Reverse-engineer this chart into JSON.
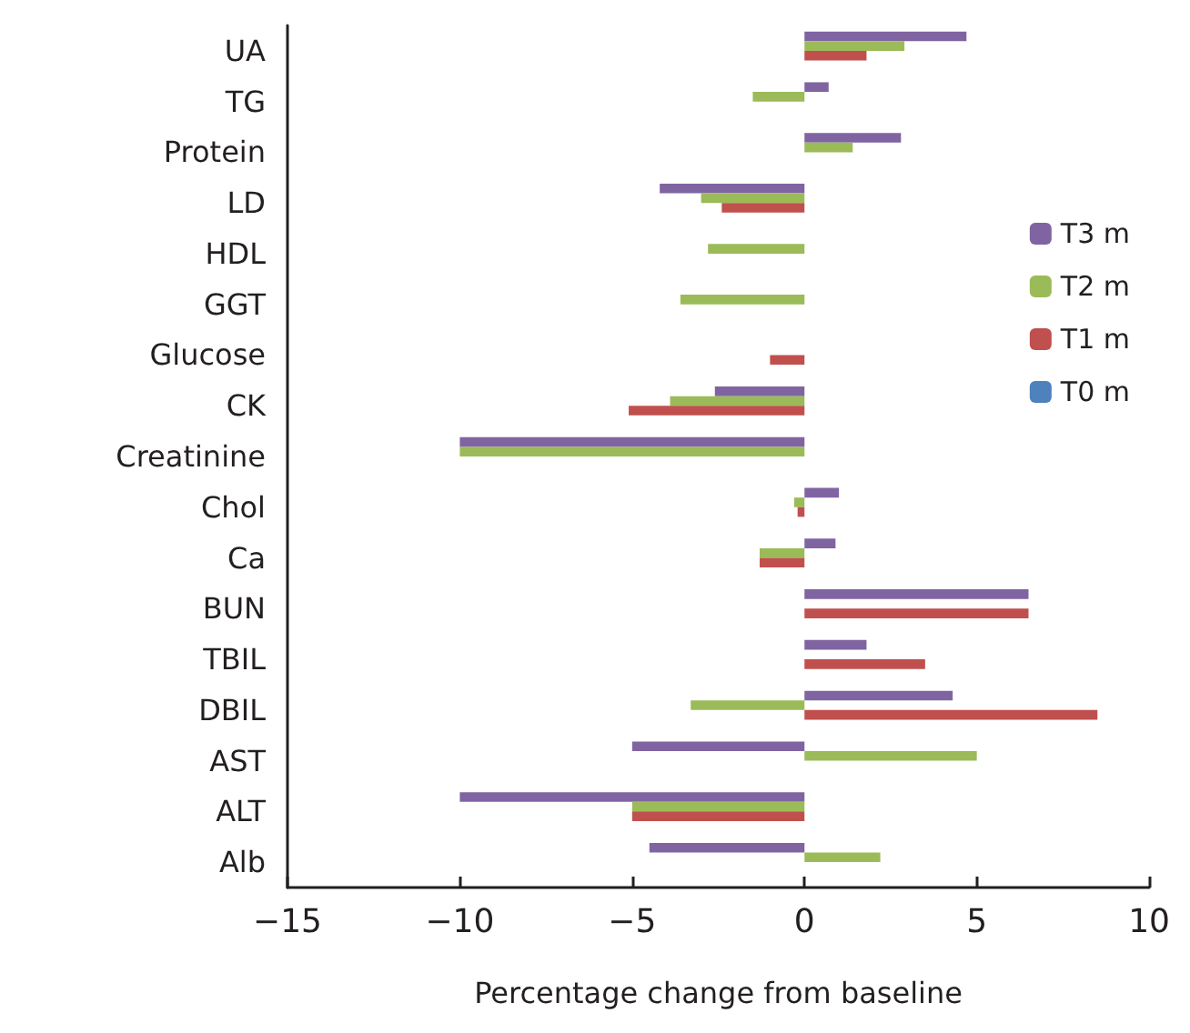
{
  "chart_data": {
    "type": "bar",
    "orientation": "horizontal",
    "xlabel": "Percentage change from baseline",
    "categories": [
      "UA",
      "TG",
      "Protein",
      "LD",
      "HDL",
      "GGT",
      "Glucose",
      "CK",
      "Creatinine",
      "Chol",
      "Ca",
      "BUN",
      "TBIL",
      "DBIL",
      "AST",
      "ALT",
      "Alb"
    ],
    "series": [
      {
        "name": "T3 m",
        "color": "#8064a2",
        "values": [
          4.7,
          0.7,
          2.8,
          -4.2,
          null,
          null,
          null,
          -2.6,
          -10,
          1.0,
          0.9,
          6.5,
          1.8,
          4.3,
          -5,
          -10,
          -4.5
        ]
      },
      {
        "name": "T2 m",
        "color": "#9bbb59",
        "values": [
          2.9,
          -1.5,
          1.4,
          -3,
          -2.8,
          -3.6,
          null,
          -3.9,
          -10,
          -0.3,
          -1.3,
          null,
          null,
          -3.3,
          5,
          -5,
          2.2
        ]
      },
      {
        "name": "T1 m",
        "color": "#c0504d",
        "values": [
          1.8,
          null,
          null,
          -2.4,
          null,
          null,
          -1.0,
          -5.1,
          null,
          -0.2,
          -1.3,
          6.5,
          3.5,
          8.5,
          null,
          -5,
          null
        ]
      },
      {
        "name": "T0 m",
        "color": "#4f81bd",
        "values": [
          0,
          0,
          0,
          0,
          0,
          0,
          0,
          0,
          0,
          0,
          0,
          0,
          0,
          0,
          0,
          0,
          0
        ]
      }
    ],
    "xlim": [
      -15,
      10
    ],
    "xticks": [
      {
        "value": -15,
        "label": "−15"
      },
      {
        "value": -10,
        "label": "−10"
      },
      {
        "value": -5,
        "label": "−5"
      },
      0,
      5,
      10
    ],
    "grid": false,
    "legend": "right"
  }
}
